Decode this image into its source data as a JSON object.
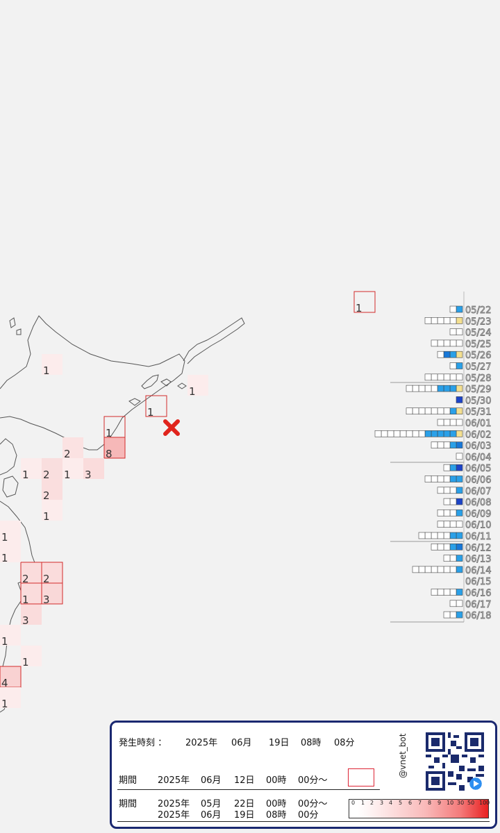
{
  "map": {
    "epicenter_marker": "x-mark-icon",
    "cells": [
      {
        "count": "1"
      },
      {
        "count": "1"
      },
      {
        "count": "1"
      },
      {
        "count": "1"
      },
      {
        "count": "8"
      },
      {
        "count": "2"
      },
      {
        "count": "1"
      },
      {
        "count": "2"
      },
      {
        "count": "1"
      },
      {
        "count": "3"
      },
      {
        "count": "2"
      },
      {
        "count": "1"
      },
      {
        "count": "1"
      },
      {
        "count": "1"
      },
      {
        "count": "2"
      },
      {
        "count": "2"
      },
      {
        "count": "1"
      },
      {
        "count": "3"
      },
      {
        "count": "3"
      },
      {
        "count": "1"
      },
      {
        "count": "1"
      },
      {
        "count": "4"
      },
      {
        "count": "1"
      },
      {
        "count": "1"
      }
    ]
  },
  "daily_counts": {
    "dates": [
      "05/22",
      "05/23",
      "05/24",
      "05/25",
      "05/26",
      "05/27",
      "05/28",
      "05/29",
      "05/30",
      "05/31",
      "06/01",
      "06/02",
      "06/03",
      "06/04",
      "06/05",
      "06/06",
      "06/07",
      "06/08",
      "06/09",
      "06/10",
      "06/11",
      "06/12",
      "06/13",
      "06/14",
      "06/15",
      "06/16",
      "06/17",
      "06/18"
    ]
  },
  "info": {
    "occurrence_label": "発生時刻 ：",
    "occurrence_year": "2025年",
    "occurrence_month": "06月",
    "occurrence_day": "19日",
    "occurrence_hour": "08時",
    "occurrence_minute": "08分",
    "period1_label": "期間",
    "period1_year": "2025年",
    "period1_month": "06月",
    "period1_day": "12日",
    "period1_hour": "00時",
    "period1_minute": "00分～",
    "period2_label": "期間",
    "period2_start_year": "2025年",
    "period2_start_month": "05月",
    "period2_start_day": "22日",
    "period2_start_hour": "00時",
    "period2_start_minute": "00分～",
    "period2_end_year": "2025年",
    "period2_end_month": "06月",
    "period2_end_day": "19日",
    "period2_end_hour": "08時",
    "period2_end_minute": "00分",
    "scale_labels": [
      "0",
      "1",
      "2",
      "3",
      "4",
      "5",
      "6",
      "7",
      "8",
      "9",
      "10",
      "30",
      "50",
      "100"
    ],
    "handle": "@vnet_bot"
  },
  "colors": {
    "background": "#f2f2f2",
    "panel_border": "#1a2870",
    "highlight_border": "#d22a2a",
    "epicenter": "#e0241c"
  }
}
